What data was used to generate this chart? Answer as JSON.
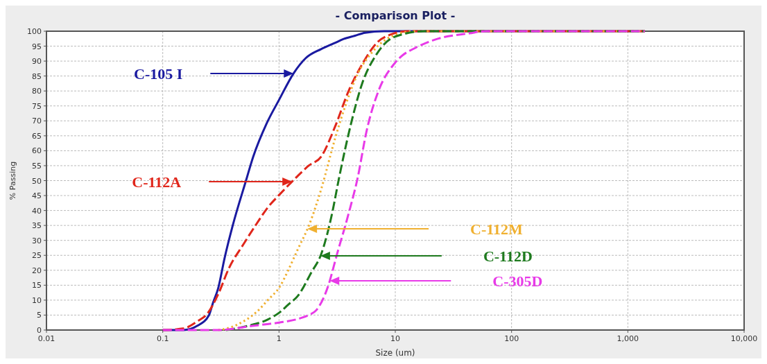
{
  "chart_data": {
    "type": "line",
    "title": "- Comparison Plot -",
    "xlabel": "Size (um)",
    "ylabel": "% Passing",
    "log": "x",
    "grid": true,
    "xlim": [
      0.01,
      10000
    ],
    "ylim": [
      0,
      100
    ],
    "xticks": [
      0.01,
      0.1,
      1,
      10,
      100,
      {
        "value": 1000,
        "label": "1,000"
      },
      {
        "value": 10000,
        "label": "10,000"
      }
    ],
    "yticks": [
      0,
      5,
      10,
      15,
      20,
      25,
      30,
      35,
      40,
      45,
      50,
      55,
      60,
      65,
      70,
      75,
      80,
      85,
      90,
      95,
      100
    ],
    "series": [
      {
        "name": "C-105 I",
        "color": "#1a1aa0",
        "line_style": "solid",
        "x": [
          0.1,
          0.15,
          0.2,
          0.25,
          0.27,
          0.3,
          0.34,
          0.4,
          0.52,
          0.6,
          0.78,
          1,
          1.34,
          1.7,
          2.3,
          3,
          3.6,
          4.5,
          5.5,
          8,
          1400
        ],
        "values": [
          0,
          0,
          1.5,
          5,
          9,
          14,
          24,
          35,
          50,
          58,
          69,
          77,
          86,
          91,
          94,
          96,
          97.4,
          98.5,
          99.5,
          100,
          100
        ]
      },
      {
        "name": "C-112A",
        "color": "#e0261b",
        "line_style": "dashed",
        "x": [
          0.1,
          0.15,
          0.2,
          0.24,
          0.3,
          0.37,
          0.5,
          0.64,
          0.8,
          1.02,
          1.4,
          1.8,
          2.3,
          3.03,
          3.97,
          5.2,
          7.1,
          9,
          13,
          1400
        ],
        "values": [
          0,
          0.5,
          3,
          5.3,
          12,
          20.6,
          29,
          35.5,
          41,
          45.5,
          51,
          55,
          58,
          68,
          80,
          89,
          96.5,
          98.8,
          100,
          100
        ]
      },
      {
        "name": "C-112M",
        "color": "#f0b030",
        "line_style": "dotted",
        "x": [
          0.3,
          0.37,
          0.5,
          0.64,
          0.8,
          1.02,
          1.2,
          1.45,
          1.83,
          2.3,
          3.03,
          3.76,
          4.74,
          6.5,
          9,
          15,
          1400
        ],
        "values": [
          0,
          0.7,
          3,
          6,
          10,
          14.6,
          20,
          27,
          35.5,
          47,
          64,
          75.6,
          85.6,
          93.5,
          98,
          100,
          100
        ]
      },
      {
        "name": "C-112D",
        "color": "#1e7a1e",
        "line_style": "dashed",
        "x": [
          0.35,
          0.54,
          0.8,
          1.02,
          1.2,
          1.45,
          1.9,
          2.3,
          2.86,
          3.28,
          4.14,
          5.2,
          6.8,
          9.7,
          18,
          1400
        ],
        "values": [
          0,
          1.4,
          3.5,
          6,
          8.5,
          11.4,
          19.3,
          25.3,
          39,
          50.8,
          68.7,
          82.6,
          91.9,
          98,
          100,
          100
        ]
      },
      {
        "name": "C-305D",
        "color": "#e83ae8",
        "line_style": "dashed",
        "x": [
          0.1,
          0.3,
          0.59,
          1,
          1.45,
          1.8,
          2.1,
          2.64,
          3.15,
          3.97,
          4.74,
          5.65,
          7.1,
          9.7,
          11.2,
          15,
          22,
          43.5,
          60,
          1400
        ],
        "values": [
          0,
          0,
          1.4,
          2.5,
          3.7,
          5,
          6.7,
          14.6,
          25.3,
          39,
          50.8,
          66.4,
          79.6,
          88.9,
          91.5,
          94.5,
          97.2,
          99.3,
          100,
          100
        ]
      }
    ],
    "legend": "left"
  }
}
